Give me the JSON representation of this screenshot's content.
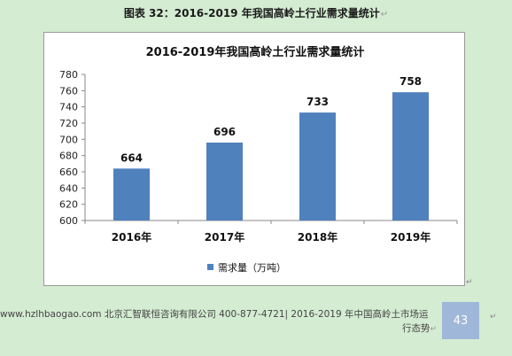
{
  "caption": {
    "text": "图表  32：2016-2019 年我国高岭土行业需求量统计",
    "mark": "↵"
  },
  "chart_data": {
    "type": "bar",
    "title": "2016-2019年我国高岭土行业需求量统计",
    "categories": [
      "2016年",
      "2017年",
      "2018年",
      "2019年"
    ],
    "series": [
      {
        "name": "需求量（万吨）",
        "values": [
          664,
          696,
          733,
          758
        ],
        "color": "#4f81bd"
      }
    ],
    "ylim": [
      600,
      780
    ],
    "yticks": [
      600,
      620,
      640,
      660,
      680,
      700,
      720,
      740,
      760,
      780
    ],
    "grid": false,
    "legend": "bottom",
    "data_labels": true
  },
  "footer": {
    "line1": "www.hzlhbaogao.com 北京汇智联恒咨询有限公司  400-877-4721| 2016-2019 年中国高岭土市场运",
    "line2": "行态势",
    "mark": "↵"
  },
  "page_number": "43",
  "marks": {
    "corner": "↵",
    "side": "↵"
  }
}
